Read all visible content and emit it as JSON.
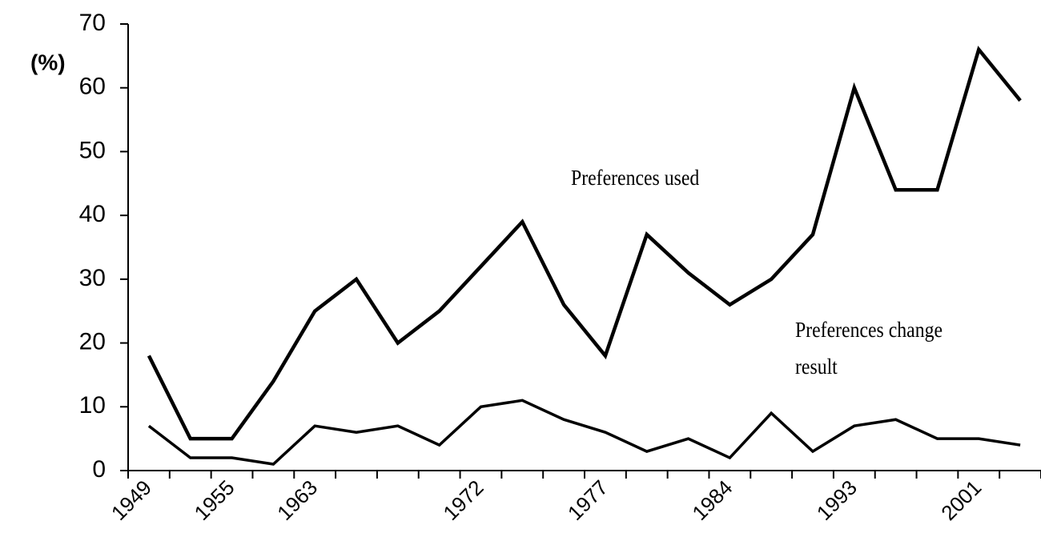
{
  "chart_data": {
    "type": "line",
    "ylabel": "(%)",
    "categories": [
      "1949",
      null,
      "1955",
      null,
      "1963",
      null,
      null,
      null,
      "1972",
      null,
      null,
      "1977",
      null,
      null,
      "1984",
      null,
      null,
      "1993",
      null,
      null,
      "2001",
      null
    ],
    "series": [
      {
        "name": "Preferences used",
        "color": "#000000",
        "values": [
          18,
          5,
          5,
          14,
          25,
          30,
          20,
          25,
          32,
          39,
          26,
          18,
          37,
          31,
          26,
          30,
          37,
          60,
          44,
          44,
          66,
          58
        ]
      },
      {
        "name": "Preferences change result",
        "color": "#000000",
        "values": [
          7,
          2,
          2,
          1,
          7,
          6,
          7,
          4,
          10,
          11,
          8,
          6,
          3,
          5,
          2,
          9,
          3,
          7,
          8,
          5,
          5,
          4
        ]
      }
    ],
    "ylim": [
      0,
      70
    ],
    "yticks": [
      0,
      10,
      20,
      30,
      40,
      50,
      60,
      70
    ],
    "grid": false
  }
}
